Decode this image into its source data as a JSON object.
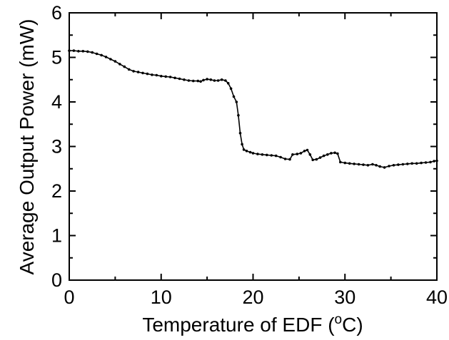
{
  "chart_data": {
    "type": "line",
    "xlabel_prefix": "Temperature of EDF (",
    "xlabel_sup": "o",
    "xlabel_suffix": "C)",
    "ylabel": "Average Output Power (mW)",
    "xlim": [
      0,
      40
    ],
    "ylim": [
      0,
      6
    ],
    "x_ticks": [
      0,
      10,
      20,
      30,
      40
    ],
    "y_ticks": [
      0,
      1,
      2,
      3,
      4,
      5,
      6
    ],
    "x_tick_labels": [
      "0",
      "10",
      "20",
      "30",
      "40"
    ],
    "y_tick_labels": [
      "0",
      "1",
      "2",
      "3",
      "4",
      "5",
      "6"
    ],
    "grid": false,
    "series": [
      {
        "color": "#000000",
        "marker": "dot",
        "points": [
          [
            0.0,
            5.15
          ],
          [
            0.5,
            5.15
          ],
          [
            1.0,
            5.14
          ],
          [
            1.5,
            5.14
          ],
          [
            2.0,
            5.13
          ],
          [
            2.5,
            5.11
          ],
          [
            3.0,
            5.08
          ],
          [
            3.5,
            5.05
          ],
          [
            4.0,
            5.01
          ],
          [
            4.5,
            4.96
          ],
          [
            5.0,
            4.91
          ],
          [
            5.5,
            4.85
          ],
          [
            6.0,
            4.79
          ],
          [
            6.5,
            4.73
          ],
          [
            7.0,
            4.69
          ],
          [
            7.5,
            4.67
          ],
          [
            8.0,
            4.65
          ],
          [
            8.5,
            4.63
          ],
          [
            9.0,
            4.61
          ],
          [
            9.5,
            4.6
          ],
          [
            10.0,
            4.58
          ],
          [
            10.5,
            4.57
          ],
          [
            11.0,
            4.56
          ],
          [
            11.5,
            4.54
          ],
          [
            12.0,
            4.52
          ],
          [
            12.5,
            4.5
          ],
          [
            13.0,
            4.48
          ],
          [
            13.5,
            4.47
          ],
          [
            14.0,
            4.47
          ],
          [
            14.3,
            4.46
          ],
          [
            14.6,
            4.49
          ],
          [
            15.0,
            4.51
          ],
          [
            15.4,
            4.5
          ],
          [
            15.8,
            4.48
          ],
          [
            16.2,
            4.48
          ],
          [
            16.6,
            4.5
          ],
          [
            17.0,
            4.48
          ],
          [
            17.3,
            4.42
          ],
          [
            17.6,
            4.3
          ],
          [
            17.9,
            4.12
          ],
          [
            18.2,
            4.0
          ],
          [
            18.4,
            3.7
          ],
          [
            18.6,
            3.3
          ],
          [
            18.8,
            3.05
          ],
          [
            19.0,
            2.93
          ],
          [
            19.3,
            2.9
          ],
          [
            19.7,
            2.87
          ],
          [
            20.0,
            2.85
          ],
          [
            20.5,
            2.83
          ],
          [
            21.0,
            2.82
          ],
          [
            21.5,
            2.81
          ],
          [
            22.0,
            2.8
          ],
          [
            22.5,
            2.79
          ],
          [
            23.0,
            2.76
          ],
          [
            23.5,
            2.72
          ],
          [
            24.0,
            2.71
          ],
          [
            24.3,
            2.82
          ],
          [
            24.8,
            2.83
          ],
          [
            25.2,
            2.85
          ],
          [
            25.6,
            2.9
          ],
          [
            25.9,
            2.92
          ],
          [
            26.2,
            2.82
          ],
          [
            26.5,
            2.7
          ],
          [
            26.9,
            2.71
          ],
          [
            27.3,
            2.75
          ],
          [
            27.7,
            2.79
          ],
          [
            28.1,
            2.82
          ],
          [
            28.5,
            2.85
          ],
          [
            28.9,
            2.86
          ],
          [
            29.2,
            2.84
          ],
          [
            29.5,
            2.65
          ],
          [
            30.0,
            2.63
          ],
          [
            30.5,
            2.62
          ],
          [
            31.0,
            2.61
          ],
          [
            31.5,
            2.6
          ],
          [
            32.0,
            2.59
          ],
          [
            32.5,
            2.58
          ],
          [
            33.0,
            2.6
          ],
          [
            33.4,
            2.58
          ],
          [
            33.8,
            2.55
          ],
          [
            34.3,
            2.53
          ],
          [
            34.8,
            2.56
          ],
          [
            35.3,
            2.58
          ],
          [
            35.8,
            2.59
          ],
          [
            36.3,
            2.6
          ],
          [
            36.8,
            2.61
          ],
          [
            37.3,
            2.62
          ],
          [
            37.8,
            2.62
          ],
          [
            38.3,
            2.63
          ],
          [
            38.8,
            2.64
          ],
          [
            39.3,
            2.65
          ],
          [
            39.7,
            2.67
          ],
          [
            40.0,
            2.68
          ]
        ]
      }
    ]
  }
}
